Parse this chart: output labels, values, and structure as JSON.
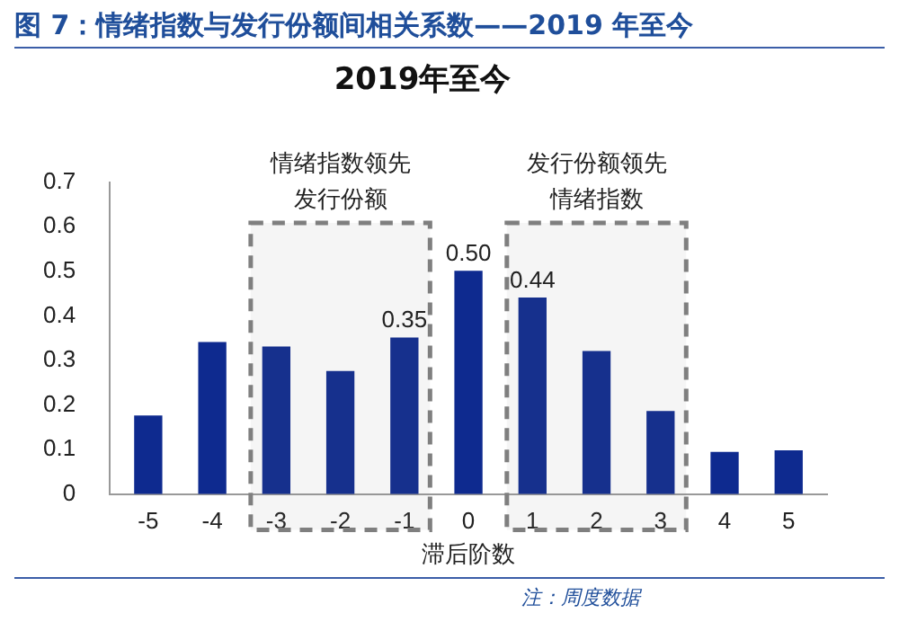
{
  "chart_data": {
    "type": "bar",
    "title": "图 7：情绪指数与发行份额间相关系数——2019 年至今",
    "subtitle": "2019年至今",
    "xlabel": "滞后阶数",
    "x": [
      -5,
      -4,
      -3,
      -2,
      -1,
      0,
      1,
      2,
      3,
      4,
      5
    ],
    "values": [
      0.175,
      0.34,
      0.33,
      0.275,
      0.35,
      0.5,
      0.44,
      0.32,
      0.185,
      0.093,
      0.097
    ],
    "value_labels": [
      null,
      null,
      null,
      null,
      "0.35",
      "0.50",
      "0.44",
      null,
      null,
      null,
      null
    ],
    "color": "#0e2a8f",
    "xlim": [
      -5.6,
      5.6
    ],
    "xticks": [
      -5,
      -4,
      -3,
      -2,
      -1,
      0,
      1,
      2,
      3,
      4,
      5
    ],
    "ylim": [
      0,
      0.7
    ],
    "yticks": [
      0,
      0.1,
      0.2,
      0.3,
      0.4,
      0.5,
      0.6,
      0.7
    ],
    "grid": false,
    "legend": false,
    "bands": [
      {
        "axis": "x",
        "from": -3.4,
        "to": -0.6,
        "label": "情绪指数领先发行份额",
        "color": "#7f7f7f"
      },
      {
        "axis": "x",
        "from": 0.6,
        "to": 3.4,
        "label": "发行份额领先情绪指数",
        "color": "#7f7f7f"
      }
    ],
    "annotations": [
      "注：周度数据"
    ]
  }
}
